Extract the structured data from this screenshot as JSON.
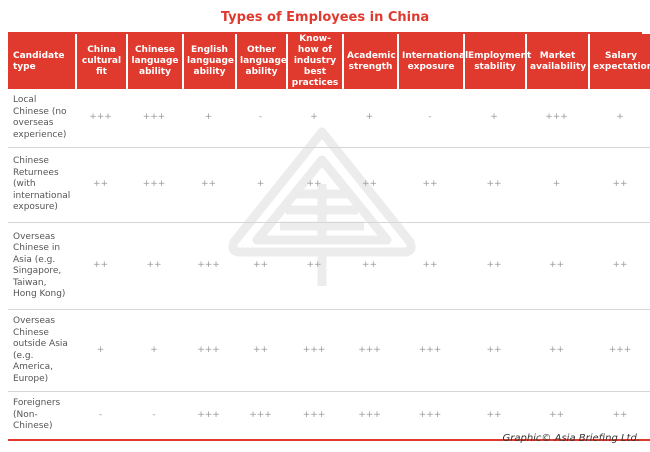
{
  "title": "Types of Employees in China",
  "columns": [
    "Candidate type",
    "China cultural fit",
    "Chinese language ability",
    "English language ability",
    "Other language ability",
    "Know-how of industry best practices",
    "Academic strength",
    "International exposure",
    "Employment stability",
    "Market availability",
    "Salary expectations"
  ],
  "rows": [
    {
      "label": "Local Chinese (no overseas experience)",
      "values": [
        "+++",
        "+++",
        "+",
        "-",
        "+",
        "+",
        "-",
        "+",
        "+++",
        "+"
      ]
    },
    {
      "label": "Chinese Returnees (with international exposure)",
      "values": [
        "++",
        "+++",
        "++",
        "+",
        "++",
        "++",
        "++",
        "++",
        "+",
        "++"
      ]
    },
    {
      "label": "Overseas Chinese in Asia (e.g. Singapore, Taiwan, Hong Kong)",
      "values": [
        "++",
        "++",
        "+++",
        "++",
        "++",
        "++",
        "++",
        "++",
        "++",
        "++"
      ]
    },
    {
      "label": "Overseas Chinese outside Asia (e.g. America, Europe)",
      "values": [
        "+",
        "+",
        "+++",
        "++",
        "+++",
        "+++",
        "+++",
        "++",
        "++",
        "+++"
      ]
    },
    {
      "label": "Foreigners (Non-Chinese)",
      "values": [
        "-",
        "-",
        "+++",
        "+++",
        "+++",
        "+++",
        "+++",
        "++",
        "++",
        "++"
      ]
    }
  ],
  "credit": "Graphic© Asia Briefing Ltd.",
  "colors": {
    "accent": "#e03a2f",
    "rule": "#d6d6d6",
    "value_text": "#9a9a9a"
  },
  "watermark_icon": "asia-briefing-logo-icon"
}
